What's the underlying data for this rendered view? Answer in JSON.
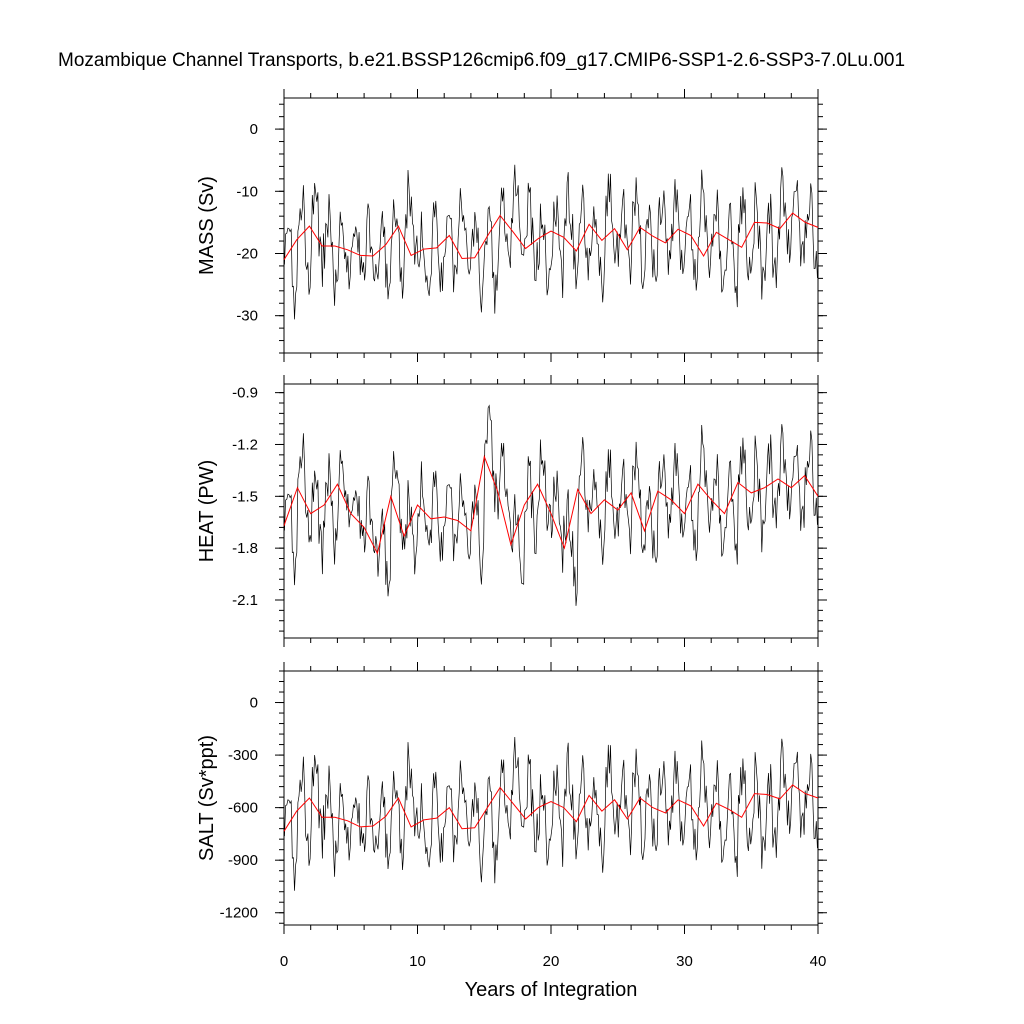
{
  "title": "Mozambique Channel Transports, b.e21.BSSP126cmip6.f09_g17.CMIP6-SSP1-2.6-SSP3-7.0Lu.001",
  "chart_data": {
    "type": "line",
    "xlabel": "Years of Integration",
    "xlim": [
      0,
      40
    ],
    "xticks": [
      0,
      10,
      20,
      30,
      40
    ],
    "line_colors": {
      "monthly": "#000000",
      "annual_mean": "#ff0000"
    },
    "panels": [
      {
        "id": "mass",
        "ylabel": "MASS (Sv)",
        "ylim": [
          -36,
          5
        ],
        "yticks": [
          0,
          -10,
          -20,
          -30
        ],
        "ytick_labels": [
          "0",
          "-10",
          "-20",
          "-30"
        ],
        "annual_mean": [
          -21.0,
          -17.8,
          -15.6,
          -18.8,
          -18.8,
          -19.4,
          -20.3,
          -20.4,
          -18.6,
          -15.6,
          -20.3,
          -19.3,
          -19.1,
          -17.1,
          -20.8,
          -20.7,
          -17.2,
          -13.9,
          -16.5,
          -19.2,
          -17.6,
          -16.4,
          -17.4,
          -19.6,
          -15.3,
          -17.9,
          -16.0,
          -19.4,
          -15.8,
          -17.2,
          -18.3,
          -16.1,
          -17.1,
          -20.4,
          -16.6,
          -17.8,
          -19.0,
          -15.0,
          -15.1,
          -16.0,
          -13.5,
          -15.0,
          -15.8
        ]
      },
      {
        "id": "heat",
        "ylabel": "HEAT (PW)",
        "ylim": [
          -2.32,
          -0.85
        ],
        "yticks": [
          -0.9,
          -1.2,
          -1.5,
          -1.8,
          -2.1
        ],
        "ytick_labels": [
          "-0.9",
          "-1.2",
          "-1.5",
          "-1.8",
          "-2.1"
        ],
        "annual_mean": [
          -1.67,
          -1.45,
          -1.6,
          -1.55,
          -1.43,
          -1.6,
          -1.68,
          -1.83,
          -1.5,
          -1.73,
          -1.55,
          -1.63,
          -1.62,
          -1.64,
          -1.7,
          -1.27,
          -1.47,
          -1.78,
          -1.55,
          -1.43,
          -1.6,
          -1.8,
          -1.46,
          -1.6,
          -1.52,
          -1.58,
          -1.48,
          -1.7,
          -1.47,
          -1.52,
          -1.6,
          -1.43,
          -1.52,
          -1.6,
          -1.42,
          -1.48,
          -1.45,
          -1.4,
          -1.45,
          -1.38,
          -1.5
        ]
      },
      {
        "id": "salt",
        "ylabel": "SALT (Sv*ppt)",
        "ylim": [
          -1270,
          180
        ],
        "yticks": [
          0,
          -300,
          -600,
          -900,
          -1200
        ],
        "ytick_labels": [
          "0",
          "-300",
          "-600",
          "-900",
          "-1200"
        ],
        "annual_mean": [
          -735,
          -620,
          -545,
          -655,
          -655,
          -675,
          -710,
          -705,
          -650,
          -545,
          -710,
          -670,
          -660,
          -600,
          -720,
          -715,
          -600,
          -485,
          -575,
          -665,
          -600,
          -565,
          -600,
          -680,
          -530,
          -620,
          -555,
          -665,
          -545,
          -600,
          -630,
          -555,
          -590,
          -705,
          -575,
          -610,
          -655,
          -520,
          -525,
          -550,
          -470,
          -520,
          -545
        ]
      }
    ]
  }
}
